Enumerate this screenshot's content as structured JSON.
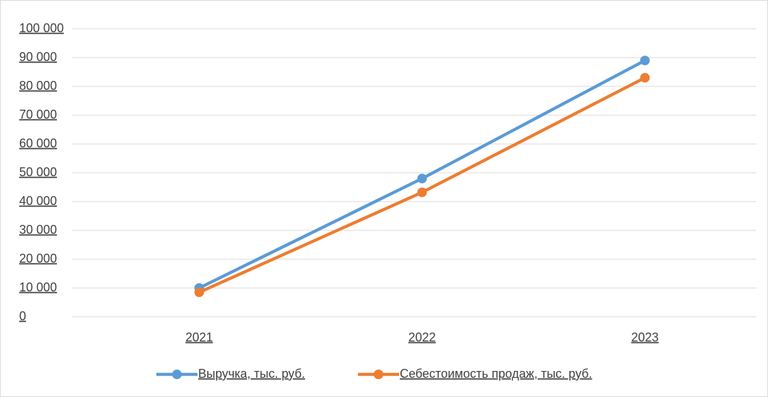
{
  "chart_data": {
    "type": "line",
    "categories": [
      "2021",
      "2022",
      "2023"
    ],
    "series": [
      {
        "name": "Выручка, тыс. руб.",
        "color": "#5b9bd5",
        "values": [
          10000,
          48000,
          89000
        ]
      },
      {
        "name": "Себестоимость продаж, тыс. руб.",
        "color": "#ed7d31",
        "values": [
          8500,
          43200,
          83000
        ]
      }
    ],
    "ylim": [
      0,
      100000
    ],
    "yticks": [
      {
        "value": 0,
        "label": "0"
      },
      {
        "value": 10000,
        "label": "10 000"
      },
      {
        "value": 20000,
        "label": "20 000"
      },
      {
        "value": 30000,
        "label": "30 000"
      },
      {
        "value": 40000,
        "label": "40 000"
      },
      {
        "value": 50000,
        "label": "50 000"
      },
      {
        "value": 60000,
        "label": "60 000"
      },
      {
        "value": 70000,
        "label": "70 000"
      },
      {
        "value": 80000,
        "label": "80 000"
      },
      {
        "value": 90000,
        "label": "90 000"
      },
      {
        "value": 100000,
        "label": "100 000"
      }
    ],
    "grid": true,
    "legend": "bottom"
  }
}
